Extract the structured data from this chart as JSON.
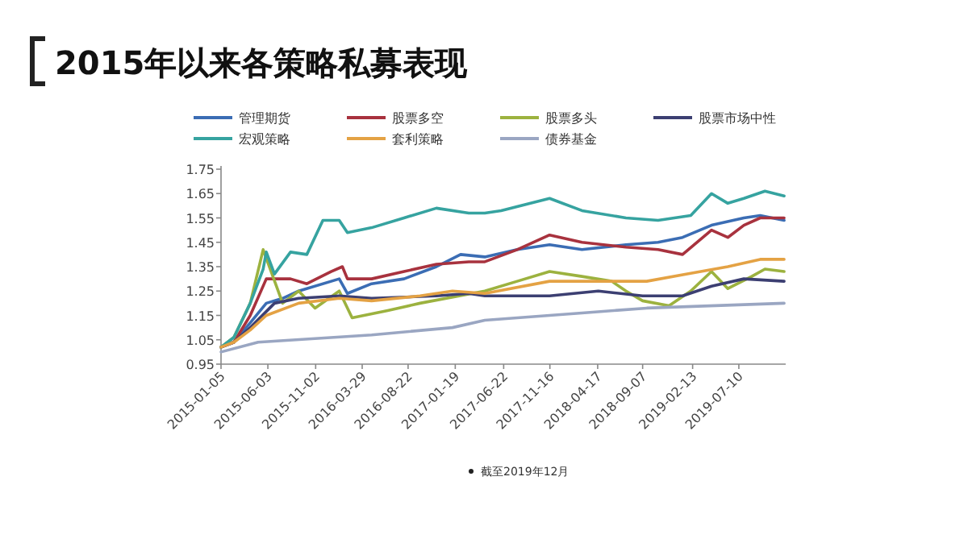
{
  "chart_data": {
    "type": "line",
    "title": "2015年以来各策略私募表现",
    "annotations": [
      "截至2019年12月"
    ],
    "xlim": [
      "2015-01-05",
      "2019-12-06"
    ],
    "xticks": [
      "2015-01-05",
      "2015-06-03",
      "2015-11-02",
      "2016-03-29",
      "2016-08-22",
      "2017-01-19",
      "2017-06-22",
      "2017-11-16",
      "2018-04-17",
      "2018-09-07",
      "2019-02-13",
      "2019-07-10"
    ],
    "ylim": [
      0.95,
      1.75
    ],
    "yticks": [
      0.95,
      1.05,
      1.15,
      1.25,
      1.35,
      1.45,
      1.55,
      1.65,
      1.75
    ],
    "grid": false,
    "legend": "top",
    "line_style": "solid",
    "marker": "none",
    "series": [
      {
        "name": "管理期货",
        "color": "#3b6db4",
        "x": [
          "2015-01-05",
          "2015-02-15",
          "2015-04-08",
          "2015-05-29",
          "2015-07-20",
          "2015-09-09",
          "2016-01-16",
          "2016-02-11",
          "2016-04-28",
          "2016-08-09",
          "2016-11-20",
          "2017-02-05",
          "2017-04-23",
          "2017-08-04",
          "2017-11-15",
          "2018-02-26",
          "2018-07-16",
          "2018-10-26",
          "2019-01-12",
          "2019-04-14",
          "2019-07-26",
          "2019-09-16",
          "2019-12-01"
        ],
        "values": [
          1.02,
          1.04,
          1.12,
          1.2,
          1.22,
          1.25,
          1.3,
          1.24,
          1.28,
          1.3,
          1.35,
          1.4,
          1.39,
          1.42,
          1.44,
          1.42,
          1.44,
          1.45,
          1.47,
          1.52,
          1.55,
          1.56,
          1.54
        ]
      },
      {
        "name": "股票多空",
        "color": "#a8323e",
        "x": [
          "2015-01-05",
          "2015-02-15",
          "2015-04-08",
          "2015-05-29",
          "2015-08-14",
          "2015-10-05",
          "2015-12-21",
          "2016-01-26",
          "2016-02-11",
          "2016-04-28",
          "2016-08-09",
          "2016-11-20",
          "2017-03-03",
          "2017-04-23",
          "2017-08-04",
          "2017-11-15",
          "2018-02-26",
          "2018-07-16",
          "2018-10-26",
          "2019-01-12",
          "2019-04-14",
          "2019-06-05",
          "2019-07-26",
          "2019-09-16",
          "2019-12-01"
        ],
        "values": [
          1.02,
          1.04,
          1.15,
          1.3,
          1.3,
          1.28,
          1.33,
          1.35,
          1.3,
          1.3,
          1.33,
          1.36,
          1.37,
          1.37,
          1.42,
          1.48,
          1.45,
          1.43,
          1.42,
          1.4,
          1.5,
          1.47,
          1.52,
          1.55,
          1.55
        ]
      },
      {
        "name": "股票多头",
        "color": "#9cb23f",
        "x": [
          "2015-01-05",
          "2015-02-15",
          "2015-04-08",
          "2015-05-19",
          "2015-07-20",
          "2015-09-09",
          "2015-10-31",
          "2016-01-16",
          "2016-02-26",
          "2016-06-18",
          "2016-09-29",
          "2017-04-23",
          "2017-08-04",
          "2017-11-15",
          "2018-02-26",
          "2018-06-01",
          "2018-07-16",
          "2018-09-07",
          "2018-11-30",
          "2019-02-07",
          "2019-04-14",
          "2019-06-05",
          "2019-08-20",
          "2019-10-01",
          "2019-12-01"
        ],
        "values": [
          1.02,
          1.06,
          1.2,
          1.42,
          1.2,
          1.25,
          1.18,
          1.25,
          1.14,
          1.17,
          1.2,
          1.25,
          1.29,
          1.33,
          1.31,
          1.29,
          1.25,
          1.21,
          1.19,
          1.25,
          1.33,
          1.26,
          1.31,
          1.34,
          1.33
        ]
      },
      {
        "name": "股票市场中性",
        "color": "#3c3f72",
        "x": [
          "2015-01-05",
          "2015-02-15",
          "2015-04-08",
          "2015-06-24",
          "2015-09-09",
          "2016-01-16",
          "2016-04-28",
          "2016-11-20",
          "2017-03-03",
          "2017-04-23",
          "2017-11-15",
          "2018-04-19",
          "2018-09-07",
          "2019-01-12",
          "2019-04-14",
          "2019-07-26",
          "2019-12-01"
        ],
        "values": [
          1.02,
          1.04,
          1.1,
          1.2,
          1.22,
          1.23,
          1.22,
          1.23,
          1.24,
          1.23,
          1.23,
          1.25,
          1.23,
          1.23,
          1.27,
          1.3,
          1.29
        ]
      },
      {
        "name": "宏观策略",
        "color": "#36a3a0",
        "x": [
          "2015-01-05",
          "2015-02-15",
          "2015-04-08",
          "2015-05-19",
          "2015-05-29",
          "2015-06-24",
          "2015-08-14",
          "2015-10-05",
          "2015-11-25",
          "2016-01-16",
          "2016-02-11",
          "2016-04-28",
          "2016-08-09",
          "2016-11-20",
          "2017-03-03",
          "2017-04-23",
          "2017-06-14",
          "2017-11-15",
          "2018-02-26",
          "2018-07-16",
          "2018-10-26",
          "2019-02-07",
          "2019-04-14",
          "2019-06-05",
          "2019-07-26",
          "2019-10-01",
          "2019-12-01"
        ],
        "values": [
          1.02,
          1.06,
          1.2,
          1.34,
          1.41,
          1.32,
          1.41,
          1.4,
          1.54,
          1.54,
          1.49,
          1.51,
          1.55,
          1.59,
          1.57,
          1.57,
          1.58,
          1.63,
          1.58,
          1.55,
          1.54,
          1.56,
          1.65,
          1.61,
          1.63,
          1.66,
          1.64
        ]
      },
      {
        "name": "套利策略",
        "color": "#e4a244",
        "x": [
          "2015-01-05",
          "2015-02-15",
          "2015-04-08",
          "2015-05-29",
          "2015-09-09",
          "2016-01-16",
          "2016-04-28",
          "2016-09-29",
          "2017-01-10",
          "2017-04-23",
          "2017-11-15",
          "2018-04-19",
          "2018-09-20",
          "2019-01-27",
          "2019-06-05",
          "2019-09-16",
          "2019-12-01"
        ],
        "values": [
          1.02,
          1.04,
          1.09,
          1.15,
          1.2,
          1.22,
          1.21,
          1.23,
          1.25,
          1.24,
          1.29,
          1.29,
          1.29,
          1.32,
          1.35,
          1.38,
          1.38
        ]
      },
      {
        "name": "债券基金",
        "color": "#9aa6c2",
        "x": [
          "2015-01-05",
          "2015-05-03",
          "2016-04-28",
          "2017-01-10",
          "2017-04-23",
          "2018-02-26",
          "2018-09-20",
          "2019-12-01"
        ],
        "values": [
          1.0,
          1.04,
          1.07,
          1.1,
          1.13,
          1.16,
          1.18,
          1.2
        ]
      }
    ]
  }
}
